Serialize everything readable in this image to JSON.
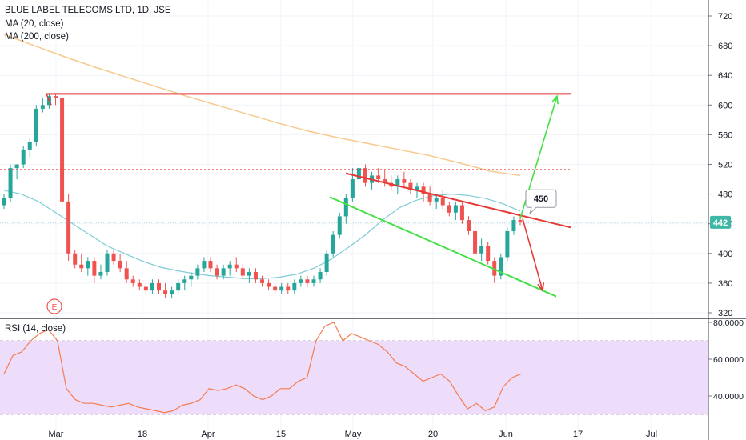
{
  "legend": {
    "title": "BLUE LABEL TELECOMS LTD, 1D, JSE",
    "ma20": "MA (20, close)",
    "ma200": "MA (200, close)",
    "rsi": "RSI (14, close)"
  },
  "colors": {
    "up": "#26a69a",
    "down": "#ef5350",
    "ma20": "#7ecbd6",
    "ma200": "#f7c98c",
    "rsi": "#f57c4e",
    "rsi_band": "#eedcfb",
    "price_label_bg": "#3fb7a6",
    "red_line": "#e53935",
    "green_line": "#43e043"
  },
  "chart_data": {
    "type": "candlestick",
    "y_ticks": [
      720,
      680,
      640,
      600,
      560,
      520,
      480,
      440,
      400,
      360,
      320
    ],
    "ylim": [
      312,
      728
    ],
    "x_labels": [
      "Mar",
      "18",
      "Apr",
      "15",
      "May",
      "20",
      "Jun",
      "17",
      "Jul"
    ],
    "current_price": 442,
    "annotation": "450",
    "earnings_marker": "E",
    "candles": [
      [
        465,
        480,
        460,
        475
      ],
      [
        475,
        520,
        470,
        515
      ],
      [
        515,
        520,
        500,
        520
      ],
      [
        520,
        545,
        515,
        540
      ],
      [
        540,
        555,
        530,
        550
      ],
      [
        550,
        600,
        545,
        595
      ],
      [
        595,
        610,
        590,
        600
      ],
      [
        600,
        615,
        595,
        612
      ],
      [
        612,
        616,
        600,
        610
      ],
      [
        610,
        612,
        460,
        470
      ],
      [
        470,
        480,
        390,
        400
      ],
      [
        400,
        405,
        380,
        385
      ],
      [
        385,
        400,
        375,
        380
      ],
      [
        380,
        395,
        370,
        390
      ],
      [
        390,
        395,
        360,
        370
      ],
      [
        370,
        385,
        365,
        375
      ],
      [
        375,
        405,
        370,
        400
      ],
      [
        400,
        405,
        385,
        390
      ],
      [
        390,
        400,
        375,
        380
      ],
      [
        380,
        390,
        360,
        365
      ],
      [
        365,
        370,
        355,
        360
      ],
      [
        360,
        365,
        350,
        355
      ],
      [
        355,
        360,
        345,
        350
      ],
      [
        350,
        365,
        345,
        360
      ],
      [
        360,
        365,
        345,
        350
      ],
      [
        350,
        360,
        340,
        345
      ],
      [
        345,
        355,
        340,
        350
      ],
      [
        350,
        365,
        345,
        360
      ],
      [
        360,
        370,
        350,
        365
      ],
      [
        365,
        375,
        355,
        370
      ],
      [
        370,
        385,
        365,
        380
      ],
      [
        380,
        395,
        375,
        390
      ],
      [
        390,
        395,
        375,
        380
      ],
      [
        380,
        385,
        365,
        370
      ],
      [
        370,
        385,
        365,
        380
      ],
      [
        380,
        390,
        370,
        385
      ],
      [
        385,
        395,
        375,
        380
      ],
      [
        380,
        385,
        365,
        370
      ],
      [
        370,
        380,
        360,
        375
      ],
      [
        375,
        380,
        360,
        365
      ],
      [
        365,
        370,
        355,
        360
      ],
      [
        360,
        365,
        350,
        355
      ],
      [
        355,
        360,
        345,
        350
      ],
      [
        350,
        360,
        345,
        355
      ],
      [
        355,
        360,
        345,
        350
      ],
      [
        350,
        365,
        345,
        360
      ],
      [
        360,
        370,
        355,
        365
      ],
      [
        365,
        370,
        355,
        360
      ],
      [
        360,
        370,
        355,
        365
      ],
      [
        365,
        380,
        360,
        375
      ],
      [
        375,
        405,
        370,
        400
      ],
      [
        400,
        430,
        395,
        425
      ],
      [
        425,
        455,
        420,
        450
      ],
      [
        450,
        480,
        440,
        475
      ],
      [
        475,
        515,
        470,
        500
      ],
      [
        500,
        520,
        485,
        515
      ],
      [
        515,
        520,
        490,
        495
      ],
      [
        495,
        510,
        485,
        505
      ],
      [
        505,
        515,
        495,
        500
      ],
      [
        500,
        512,
        490,
        495
      ],
      [
        495,
        505,
        485,
        490
      ],
      [
        490,
        505,
        480,
        500
      ],
      [
        500,
        510,
        490,
        495
      ],
      [
        495,
        500,
        480,
        485
      ],
      [
        485,
        495,
        475,
        490
      ],
      [
        490,
        495,
        470,
        480
      ],
      [
        480,
        490,
        465,
        470
      ],
      [
        470,
        480,
        460,
        475
      ],
      [
        475,
        485,
        460,
        465
      ],
      [
        465,
        470,
        450,
        455
      ],
      [
        455,
        470,
        445,
        465
      ],
      [
        465,
        470,
        440,
        445
      ],
      [
        445,
        450,
        425,
        430
      ],
      [
        430,
        440,
        395,
        400
      ],
      [
        400,
        420,
        390,
        410
      ],
      [
        410,
        415,
        385,
        390
      ],
      [
        390,
        395,
        360,
        370
      ],
      [
        370,
        400,
        365,
        395
      ],
      [
        395,
        435,
        390,
        430
      ],
      [
        430,
        450,
        425,
        445
      ],
      [
        445,
        452,
        438,
        442
      ]
    ],
    "ma20": [
      485,
      480,
      470,
      455,
      440,
      425,
      410,
      400,
      390,
      382,
      377,
      373,
      370,
      368,
      366,
      366,
      368,
      372,
      380,
      392,
      408,
      425,
      445,
      462,
      472,
      478,
      480,
      478,
      474,
      467,
      457
    ],
    "ma200": [
      695,
      680,
      665,
      651,
      638,
      625,
      612,
      600,
      588,
      576,
      565,
      556,
      548,
      540,
      532,
      522,
      511,
      505
    ],
    "series": [
      {
        "name": "RSI (14, close)",
        "values": [
          52,
          62,
          64,
          70,
          74,
          76,
          70,
          44,
          38,
          36,
          36,
          35,
          34,
          35,
          36,
          34,
          33,
          32,
          31,
          32,
          35,
          36,
          38,
          44,
          43,
          44,
          46,
          44,
          40,
          38,
          40,
          44,
          44,
          48,
          50,
          70,
          78,
          80,
          70,
          74,
          72,
          70,
          68,
          64,
          58,
          56,
          52,
          48,
          50,
          52,
          48,
          40,
          33,
          36,
          32,
          34,
          45,
          50,
          52
        ]
      }
    ],
    "rsi_ticks": [
      80,
      60,
      40
    ],
    "rsi_ylim": [
      25,
      82
    ]
  }
}
